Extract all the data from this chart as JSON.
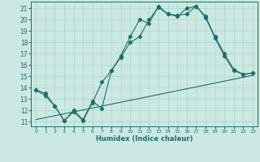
{
  "xlabel": "Humidex (Indice chaleur)",
  "bg_color": "#cce8e2",
  "line_color": "#1a7068",
  "grid_color": "#aad4cc",
  "xlim": [
    -0.5,
    23.5
  ],
  "ylim": [
    10.6,
    21.6
  ],
  "yticks": [
    11,
    12,
    13,
    14,
    15,
    16,
    17,
    18,
    19,
    20,
    21
  ],
  "xticks": [
    0,
    1,
    2,
    3,
    4,
    5,
    6,
    7,
    8,
    9,
    10,
    11,
    12,
    13,
    14,
    15,
    16,
    17,
    18,
    19,
    20,
    21,
    22,
    23
  ],
  "line1_x": [
    0,
    1,
    2,
    3,
    4,
    5,
    6,
    7,
    8,
    9,
    10,
    11,
    12,
    13,
    14,
    15,
    16,
    17,
    18,
    19,
    20,
    21,
    22,
    23
  ],
  "line1_y": [
    13.8,
    13.5,
    12.4,
    11.1,
    12.0,
    11.2,
    12.8,
    12.2,
    15.5,
    16.8,
    18.5,
    20.0,
    19.7,
    21.2,
    20.5,
    20.4,
    20.5,
    21.2,
    20.3,
    18.5,
    17.0,
    15.6,
    15.2,
    15.3
  ],
  "line2_x": [
    0,
    1,
    2,
    3,
    4,
    5,
    6,
    7,
    8,
    9,
    10,
    11,
    12,
    13,
    14,
    15,
    16,
    17,
    18,
    19,
    20,
    21,
    22,
    23
  ],
  "line2_y": [
    13.8,
    13.3,
    12.4,
    11.1,
    11.9,
    11.1,
    12.7,
    14.5,
    15.5,
    16.7,
    18.0,
    18.5,
    20.0,
    21.1,
    20.5,
    20.3,
    21.0,
    21.2,
    20.2,
    18.4,
    16.8,
    15.5,
    15.2,
    15.3
  ],
  "line3_x": [
    0,
    23
  ],
  "line3_y": [
    11.2,
    15.1
  ]
}
